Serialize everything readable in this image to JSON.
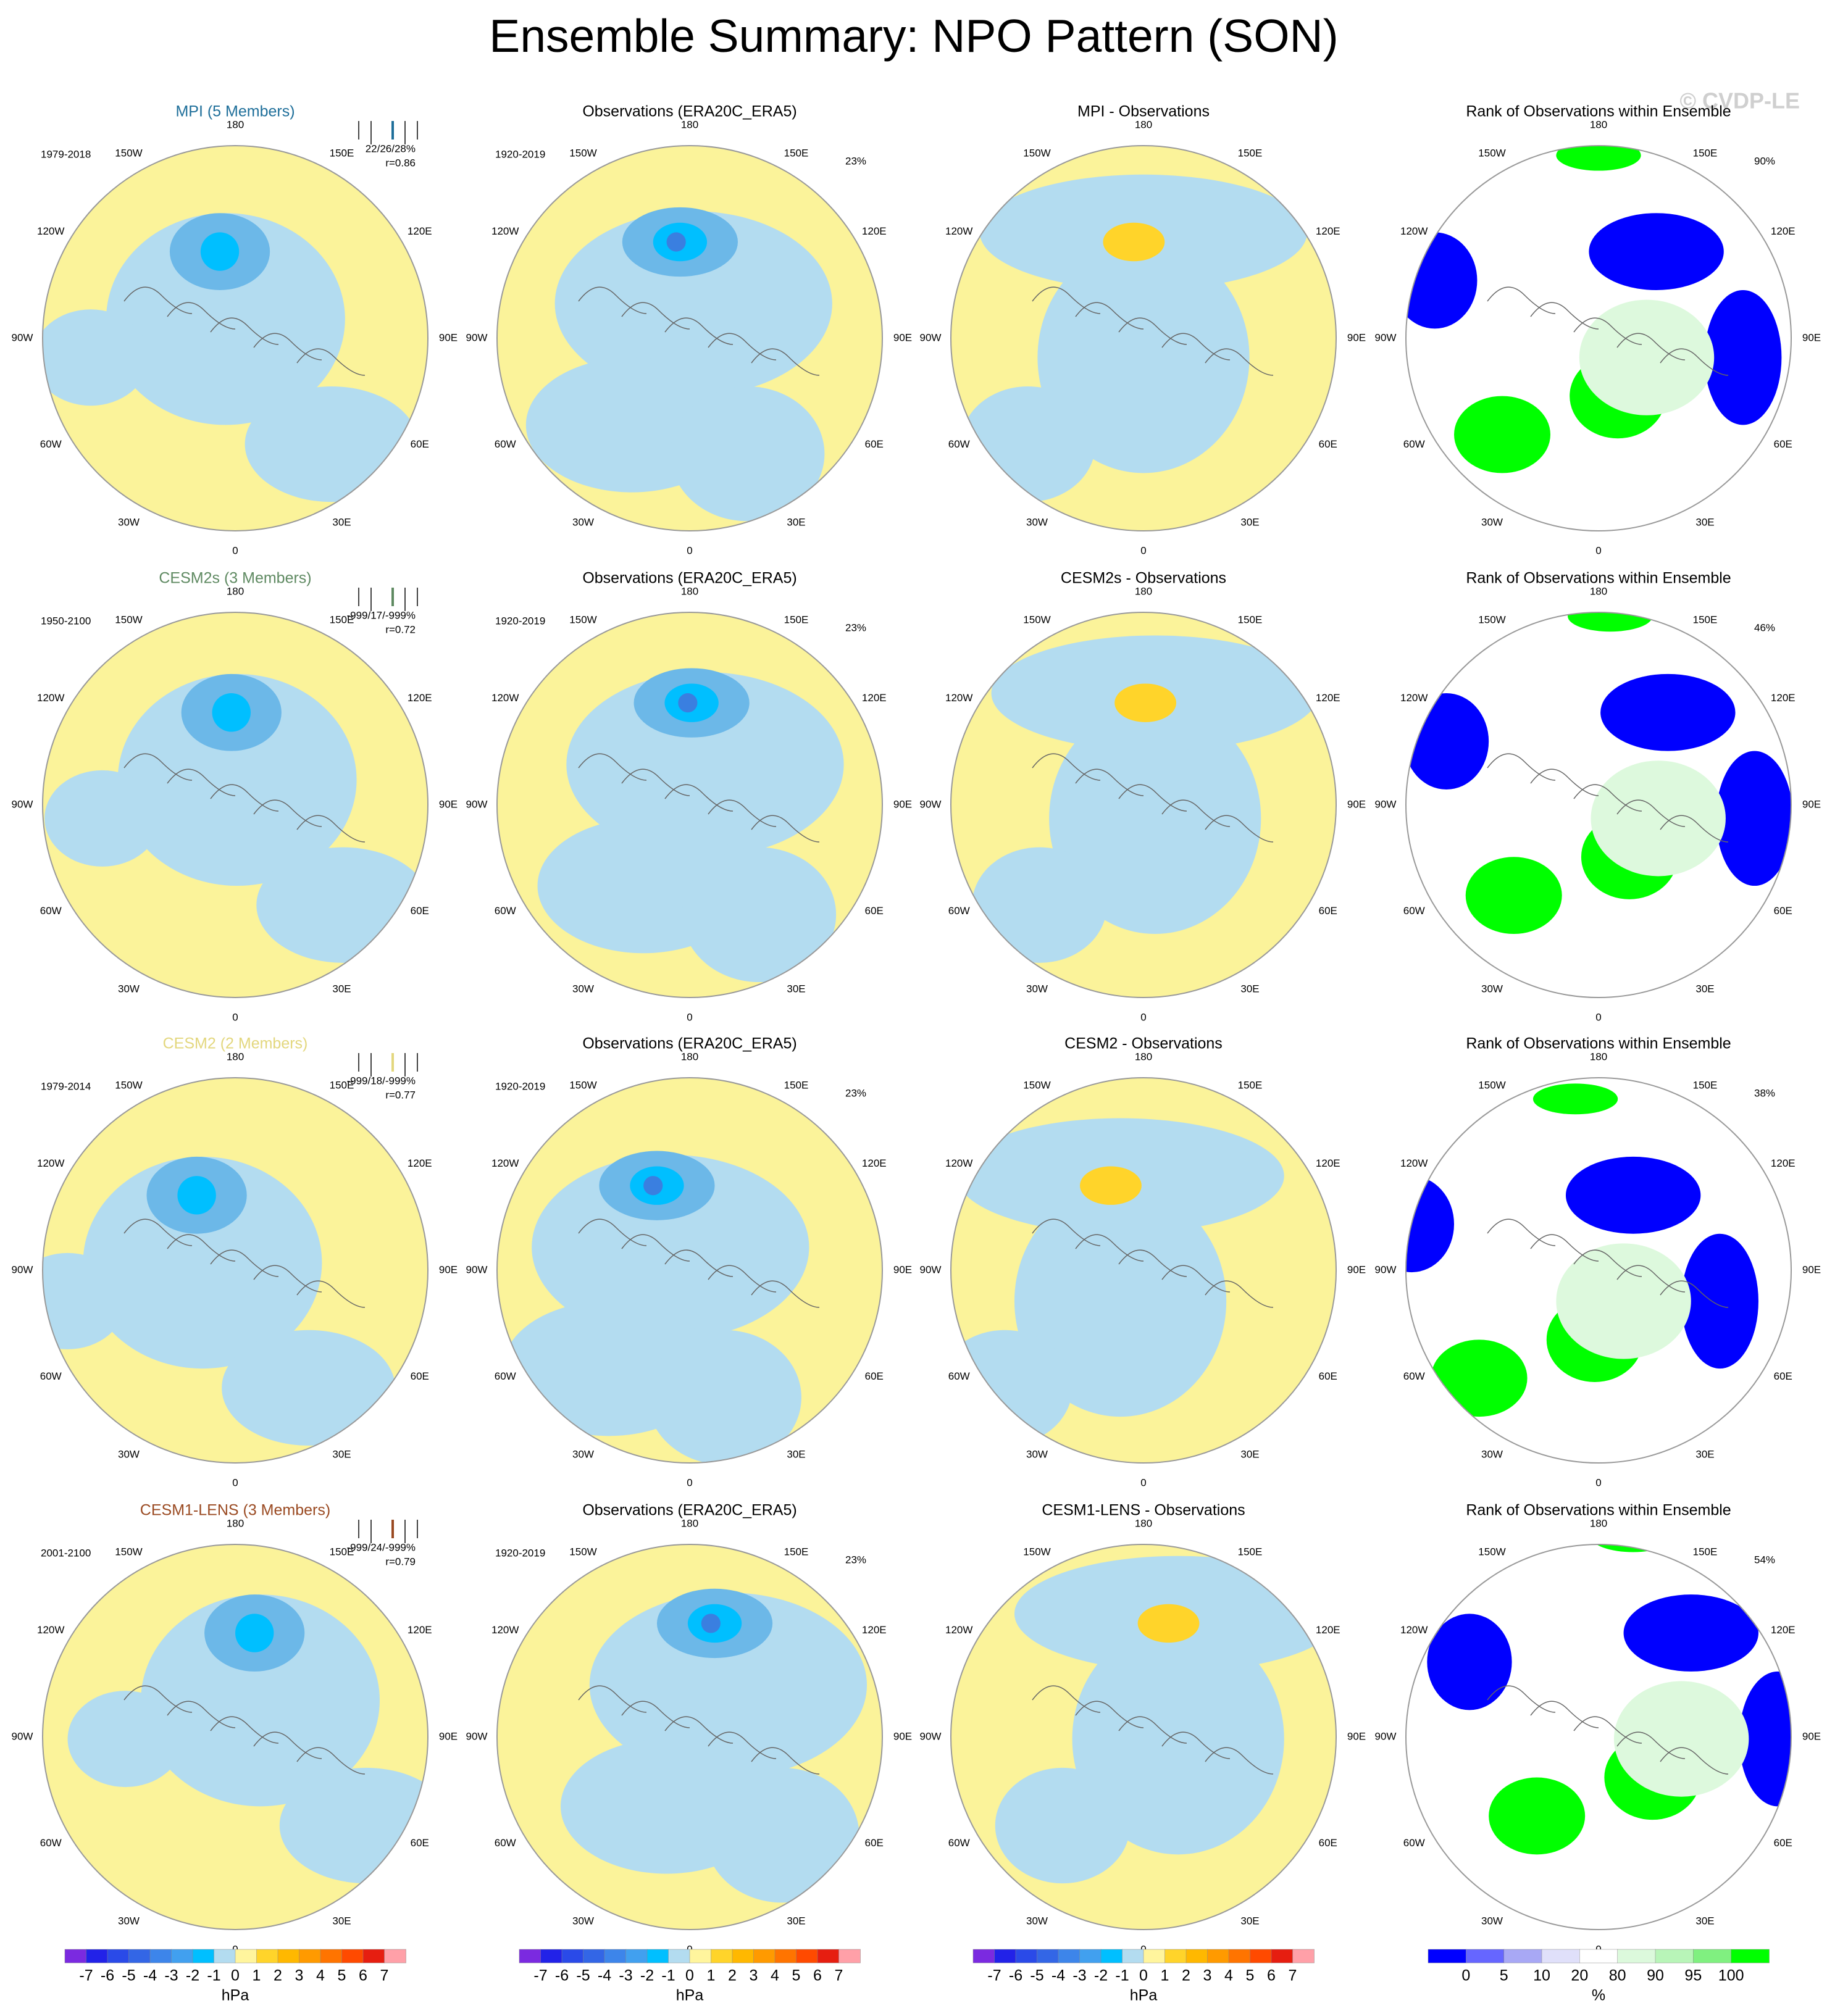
{
  "title": "Ensemble Summary: NPO Pattern (SON)",
  "watermark": "© CVDP-LE",
  "lon_labels": [
    "180",
    "150E",
    "120E",
    "90E",
    "60E",
    "30E",
    "0",
    "30W",
    "60W",
    "90W",
    "120W",
    "150W"
  ],
  "rows": [
    {
      "panels": [
        {
          "title": "MPI (5 Members)",
          "title_color": "#1f6f9a",
          "period": "1979-2018",
          "stats": [
            "22/26/28%",
            "r=0.86"
          ]
        },
        {
          "title": "Observations (ERA20C_ERA5)",
          "period": "1920-2019",
          "percent": "23%"
        },
        {
          "title": "MPI - Observations"
        },
        {
          "title": "Rank of Observations within Ensemble",
          "percent": "90%"
        }
      ]
    },
    {
      "panels": [
        {
          "title": "CESM2s (3 Members)",
          "title_color": "#5f8a62",
          "period": "1950-2100",
          "stats": [
            "-999/17/-999%",
            "r=0.72"
          ]
        },
        {
          "title": "Observations (ERA20C_ERA5)",
          "period": "1920-2019",
          "percent": "23%"
        },
        {
          "title": "CESM2s - Observations"
        },
        {
          "title": "Rank of Observations within Ensemble",
          "percent": "46%"
        }
      ]
    },
    {
      "panels": [
        {
          "title": "CESM2 (2 Members)",
          "title_color": "#e3d77e",
          "period": "1979-2014",
          "stats": [
            "-999/18/-999%",
            "r=0.77"
          ]
        },
        {
          "title": "Observations (ERA20C_ERA5)",
          "period": "1920-2019",
          "percent": "23%"
        },
        {
          "title": "CESM2 - Observations"
        },
        {
          "title": "Rank of Observations within Ensemble",
          "percent": "38%"
        }
      ]
    },
    {
      "panels": [
        {
          "title": "CESM1-LENS (3 Members)",
          "title_color": "#9a4a22",
          "period": "2001-2100",
          "stats": [
            "-999/24/-999%",
            "r=0.79"
          ]
        },
        {
          "title": "Observations (ERA20C_ERA5)",
          "period": "1920-2019",
          "percent": "23%"
        },
        {
          "title": "CESM1-LENS - Observations"
        },
        {
          "title": "Rank of Observations within Ensemble",
          "percent": "54%"
        }
      ]
    }
  ],
  "colorbars": [
    {
      "labels": [
        -7,
        -6,
        -5,
        -4,
        -3,
        -2,
        -1,
        0,
        1,
        2,
        3,
        4,
        5,
        6,
        7
      ],
      "unit": "hPa",
      "colors": [
        "#7b2ae0",
        "#2222e8",
        "#2a4ae8",
        "#3366e6",
        "#3d85ea",
        "#41a0ef",
        "#00bfff",
        "#b3dcf0",
        "#fff59d",
        "#ffd42a",
        "#ffb800",
        "#ff9a00",
        "#ff7400",
        "#ff4a00",
        "#e61e10",
        "#ffa0a8"
      ]
    },
    {
      "labels": [
        -7,
        -6,
        -5,
        -4,
        -3,
        -2,
        -1,
        0,
        1,
        2,
        3,
        4,
        5,
        6,
        7
      ],
      "unit": "hPa",
      "colors": [
        "#7b2ae0",
        "#2222e8",
        "#2a4ae8",
        "#3366e6",
        "#3d85ea",
        "#41a0ef",
        "#00bfff",
        "#b3dcf0",
        "#fff59d",
        "#ffd42a",
        "#ffb800",
        "#ff9a00",
        "#ff7400",
        "#ff4a00",
        "#e61e10",
        "#ffa0a8"
      ]
    },
    {
      "labels": [
        -7,
        -6,
        -5,
        -4,
        -3,
        -2,
        -1,
        0,
        1,
        2,
        3,
        4,
        5,
        6,
        7
      ],
      "unit": "hPa",
      "colors": [
        "#7b2ae0",
        "#2222e8",
        "#2a4ae8",
        "#3366e6",
        "#3d85ea",
        "#41a0ef",
        "#00bfff",
        "#b3dcf0",
        "#fff59d",
        "#ffd42a",
        "#ffb800",
        "#ff9a00",
        "#ff7400",
        "#ff4a00",
        "#e61e10",
        "#ffa0a8"
      ]
    },
    {
      "labels": [
        0,
        5,
        10,
        20,
        80,
        90,
        95,
        100
      ],
      "unit": "%",
      "colors": [
        "#0000ff",
        "#6666ff",
        "#a8a8f5",
        "#e0e0fa",
        "#ffffff",
        "#dcf9dc",
        "#b8f5b8",
        "#80f080",
        "#00ff00"
      ]
    }
  ]
}
